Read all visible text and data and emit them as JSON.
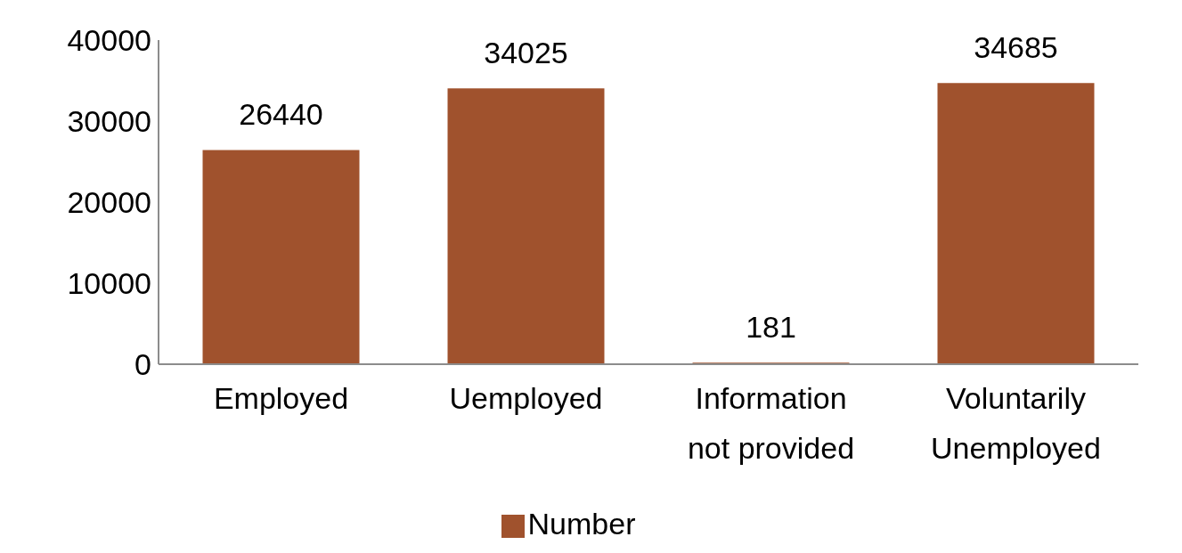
{
  "chart_data": {
    "type": "bar",
    "categories": [
      "Employed",
      "Uemployed",
      "Information not provided",
      "Voluntarily Unemployed"
    ],
    "series": [
      {
        "name": "Number",
        "color": "#a0522d",
        "values": [
          26440,
          34025,
          181,
          34685
        ]
      }
    ],
    "ylim": [
      0,
      40000
    ],
    "yticks": [
      0,
      10000,
      20000,
      30000,
      40000
    ],
    "grid": false,
    "legend": "bottom",
    "data_labels": true
  }
}
